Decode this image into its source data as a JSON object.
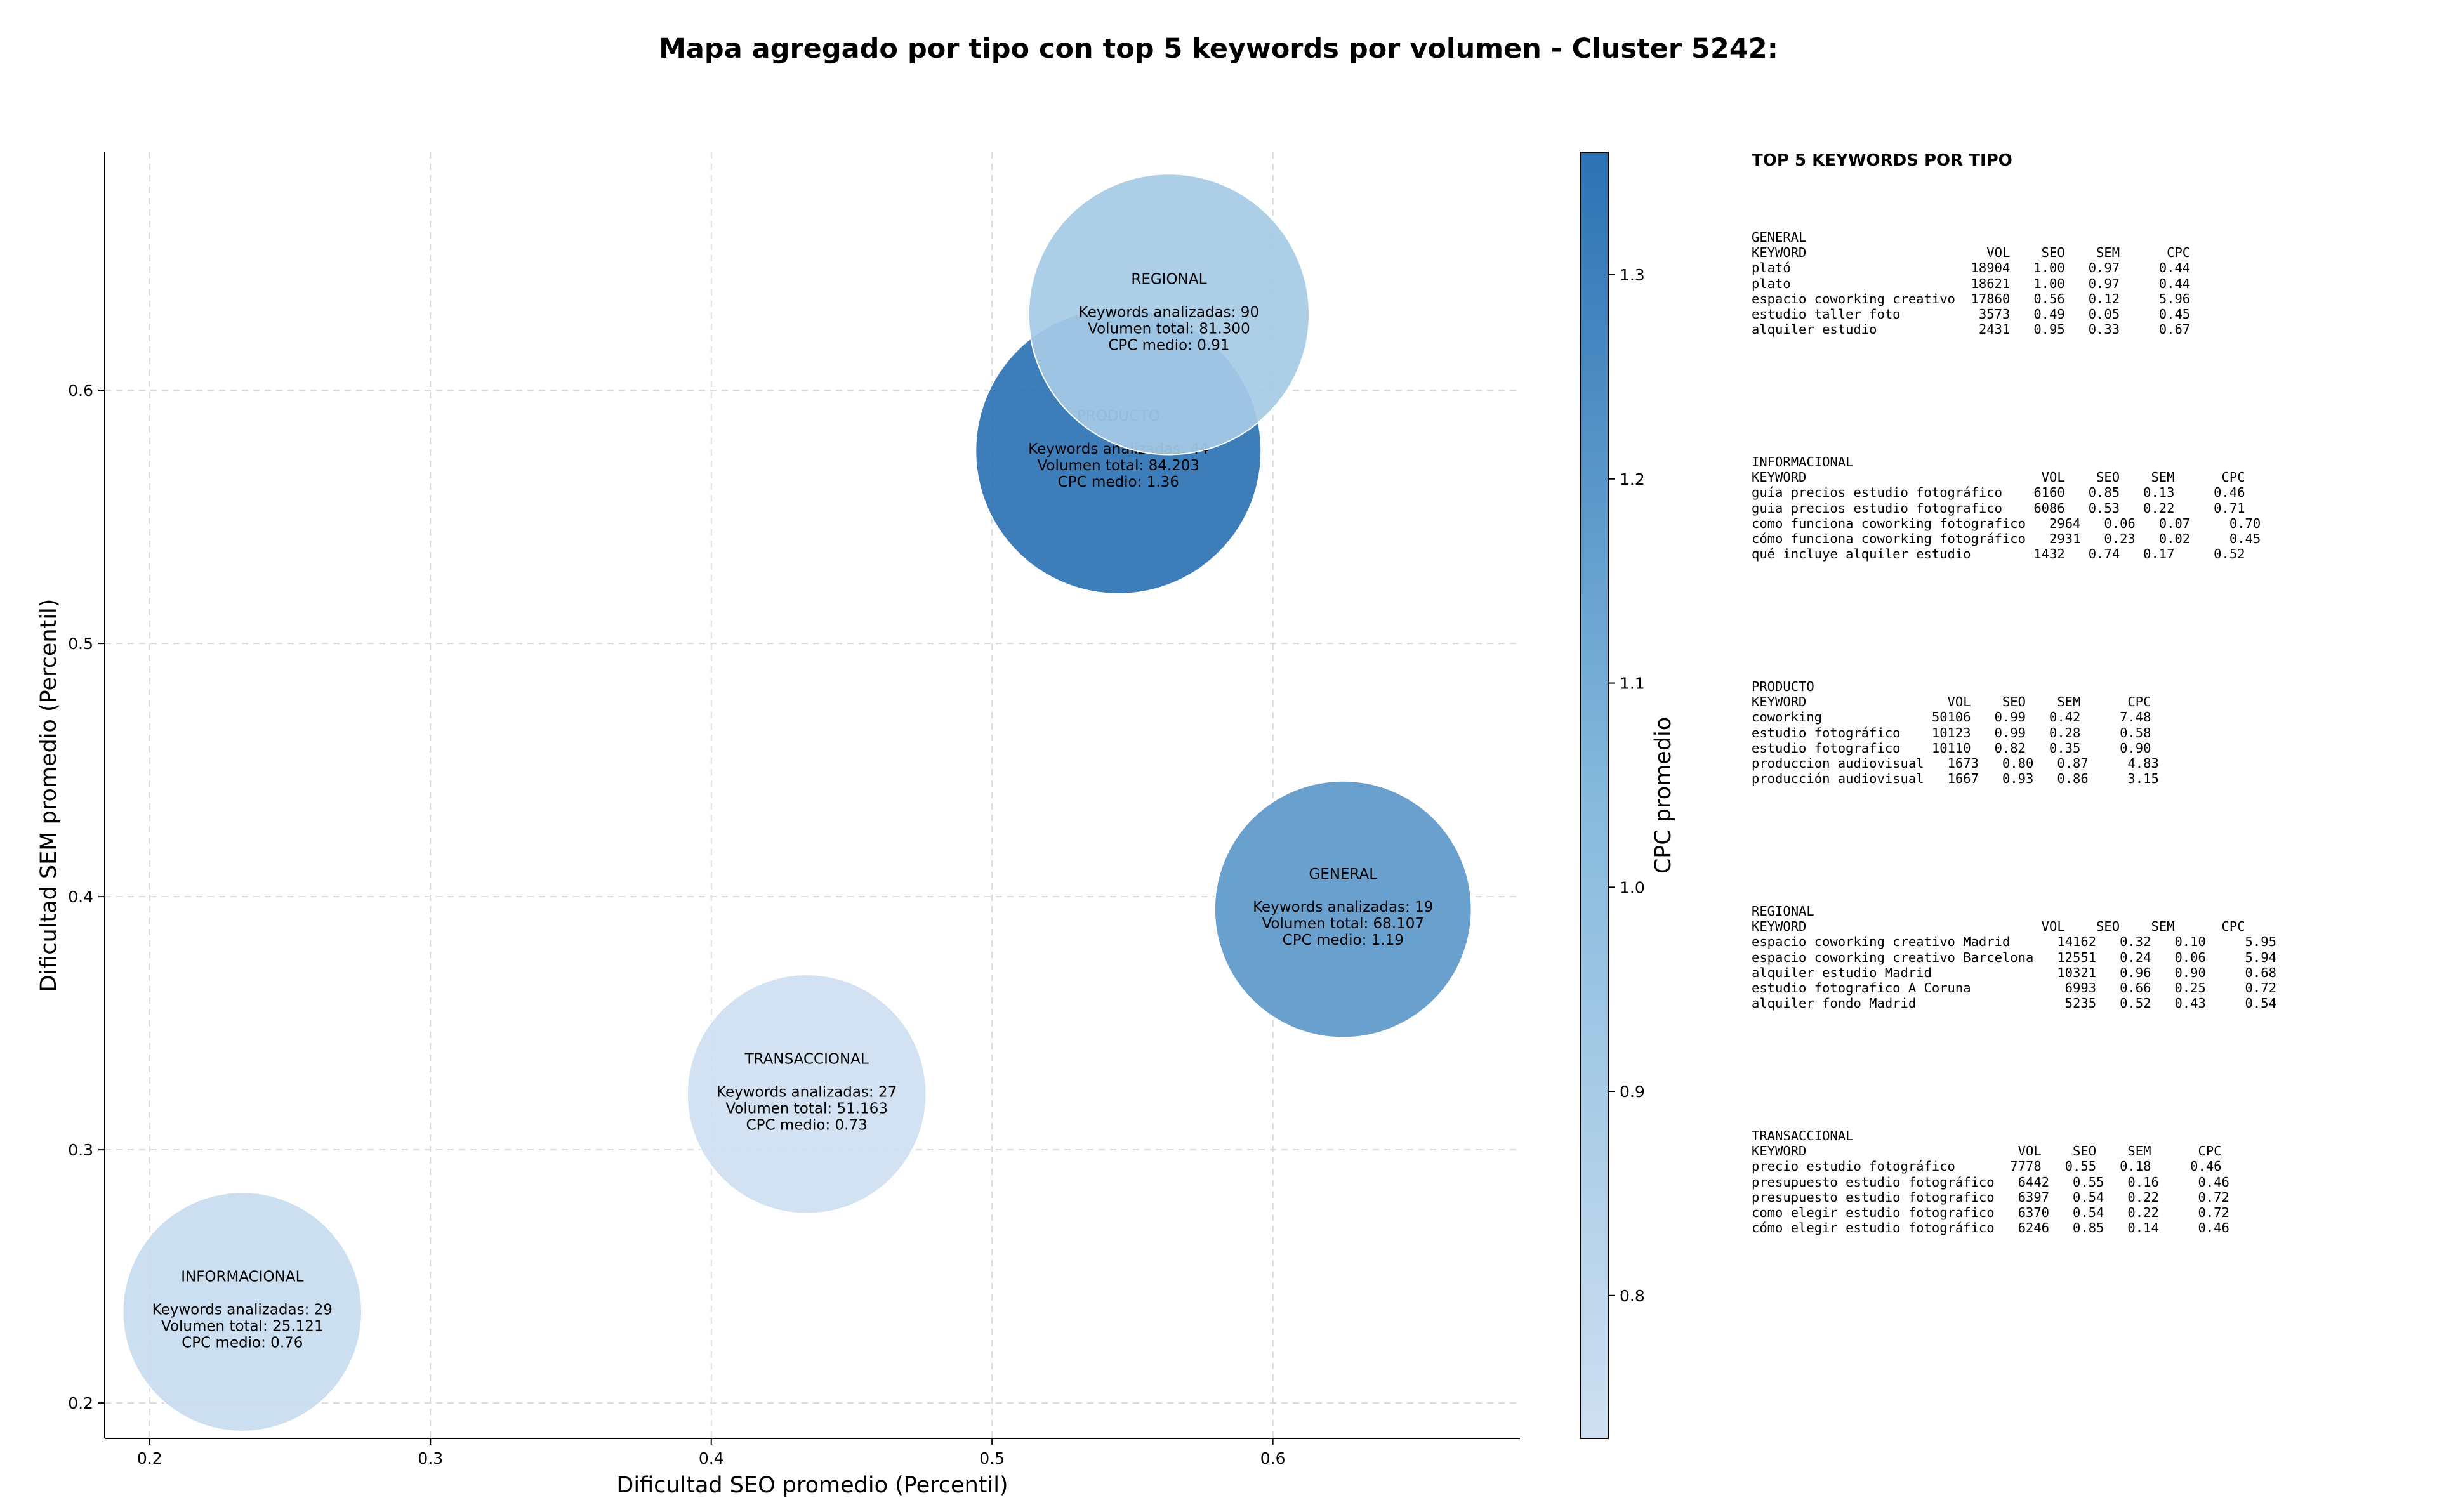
{
  "chart_data": {
    "type": "scatter",
    "title": "Mapa agregado por tipo con top 5 keywords por volumen - Cluster 5242:",
    "xlabel": "Dificultad SEO promedio (Percentil)",
    "ylabel": "Dificultad SEM promedio (Percentil)",
    "xlim": [
      0.184,
      0.688
    ],
    "ylim": [
      0.186,
      0.694
    ],
    "xticks": [
      "0.2",
      "0.3",
      "0.4",
      "0.5",
      "0.6"
    ],
    "yticks": [
      "0.2",
      "0.3",
      "0.4",
      "0.5",
      "0.6"
    ],
    "grid": true,
    "colorbar": {
      "label": "CPC promedio",
      "range": [
        0.73,
        1.36
      ],
      "ticks": [
        "0.8",
        "0.9",
        "1.0",
        "1.1",
        "1.2",
        "1.3"
      ],
      "color_low": "#cfe0f1",
      "color_high": "#2c72b4"
    },
    "points": [
      {
        "label": "GENERAL",
        "x": 0.625,
        "y": 0.395,
        "keywords": 19,
        "volume": 68107,
        "cpc": 1.19,
        "lines": [
          "Keywords analizadas: 19",
          "Volumen total: 68.107",
          "CPC medio: 1.19"
        ]
      },
      {
        "label": "INFORMACIONAL",
        "x": 0.233,
        "y": 0.236,
        "keywords": 29,
        "volume": 25121,
        "cpc": 0.76,
        "lines": [
          "Keywords analizadas: 29",
          "Volumen total: 25.121",
          "CPC medio: 0.76"
        ]
      },
      {
        "label": "TRANSACCIONAL",
        "x": 0.434,
        "y": 0.322,
        "keywords": 27,
        "volume": 51163,
        "cpc": 0.73,
        "lines": [
          "Keywords analizadas: 27",
          "Volumen total: 51.163",
          "CPC medio: 0.73"
        ]
      },
      {
        "label": "PRODUCTO",
        "x": 0.545,
        "y": 0.576,
        "keywords": 44,
        "volume": 84203,
        "cpc": 1.36,
        "lines": [
          "Keywords analizadas: 44",
          "Volumen total: 84.203",
          "CPC medio: 1.36"
        ]
      },
      {
        "label": "REGIONAL",
        "x": 0.563,
        "y": 0.63,
        "keywords": 90,
        "volume": 81300,
        "cpc": 0.91,
        "lines": [
          "Keywords analizadas: 90",
          "Volumen total: 81.300",
          "CPC medio: 0.91"
        ]
      }
    ]
  },
  "keyword_panel": {
    "heading": "TOP 5 KEYWORDS POR TIPO",
    "groups": [
      {
        "name": "GENERAL",
        "text": "GENERAL\nKEYWORD                       VOL    SEO    SEM      CPC\nplató                       18904   1.00   0.97     0.44\nplato                       18621   1.00   0.97     0.44\nespacio coworking creativo  17860   0.56   0.12     5.96\nestudio taller foto          3573   0.49   0.05     0.45\nalquiler estudio             2431   0.95   0.33     0.67"
      },
      {
        "name": "INFORMACIONAL",
        "text": "INFORMACIONAL\nKEYWORD                              VOL    SEO    SEM      CPC\nguía precios estudio fotográfico    6160   0.85   0.13     0.46\nguia precios estudio fotografico    6086   0.53   0.22     0.71\ncomo funciona coworking fotografico   2964   0.06   0.07     0.70\ncómo funciona coworking fotográfico   2931   0.23   0.02     0.45\nqué incluye alquiler estudio        1432   0.74   0.17     0.52"
      },
      {
        "name": "PRODUCTO",
        "text": "PRODUCTO\nKEYWORD                  VOL    SEO    SEM      CPC\ncoworking              50106   0.99   0.42     7.48\nestudio fotográfico    10123   0.99   0.28     0.58\nestudio fotografico    10110   0.82   0.35     0.90\nproduccion audiovisual   1673   0.80   0.87     4.83\nproducción audiovisual   1667   0.93   0.86     3.15"
      },
      {
        "name": "REGIONAL",
        "text": "REGIONAL\nKEYWORD                              VOL    SEO    SEM      CPC\nespacio coworking creativo Madrid      14162   0.32   0.10     5.95\nespacio coworking creativo Barcelona   12551   0.24   0.06     5.94\nalquiler estudio Madrid                10321   0.96   0.90     0.68\nestudio fotografico A Coruna            6993   0.66   0.25     0.72\nalquiler fondo Madrid                   5235   0.52   0.43     0.54"
      },
      {
        "name": "TRANSACCIONAL",
        "text": "TRANSACCIONAL\nKEYWORD                           VOL    SEO    SEM      CPC\nprecio estudio fotográfico       7778   0.55   0.18     0.46\npresupuesto estudio fotográfico   6442   0.55   0.16     0.46\npresupuesto estudio fotografico   6397   0.54   0.22     0.72\ncomo elegir estudio fotografico   6370   0.54   0.22     0.72\ncómo elegir estudio fotográfico   6246   0.85   0.14     0.46"
      }
    ]
  }
}
